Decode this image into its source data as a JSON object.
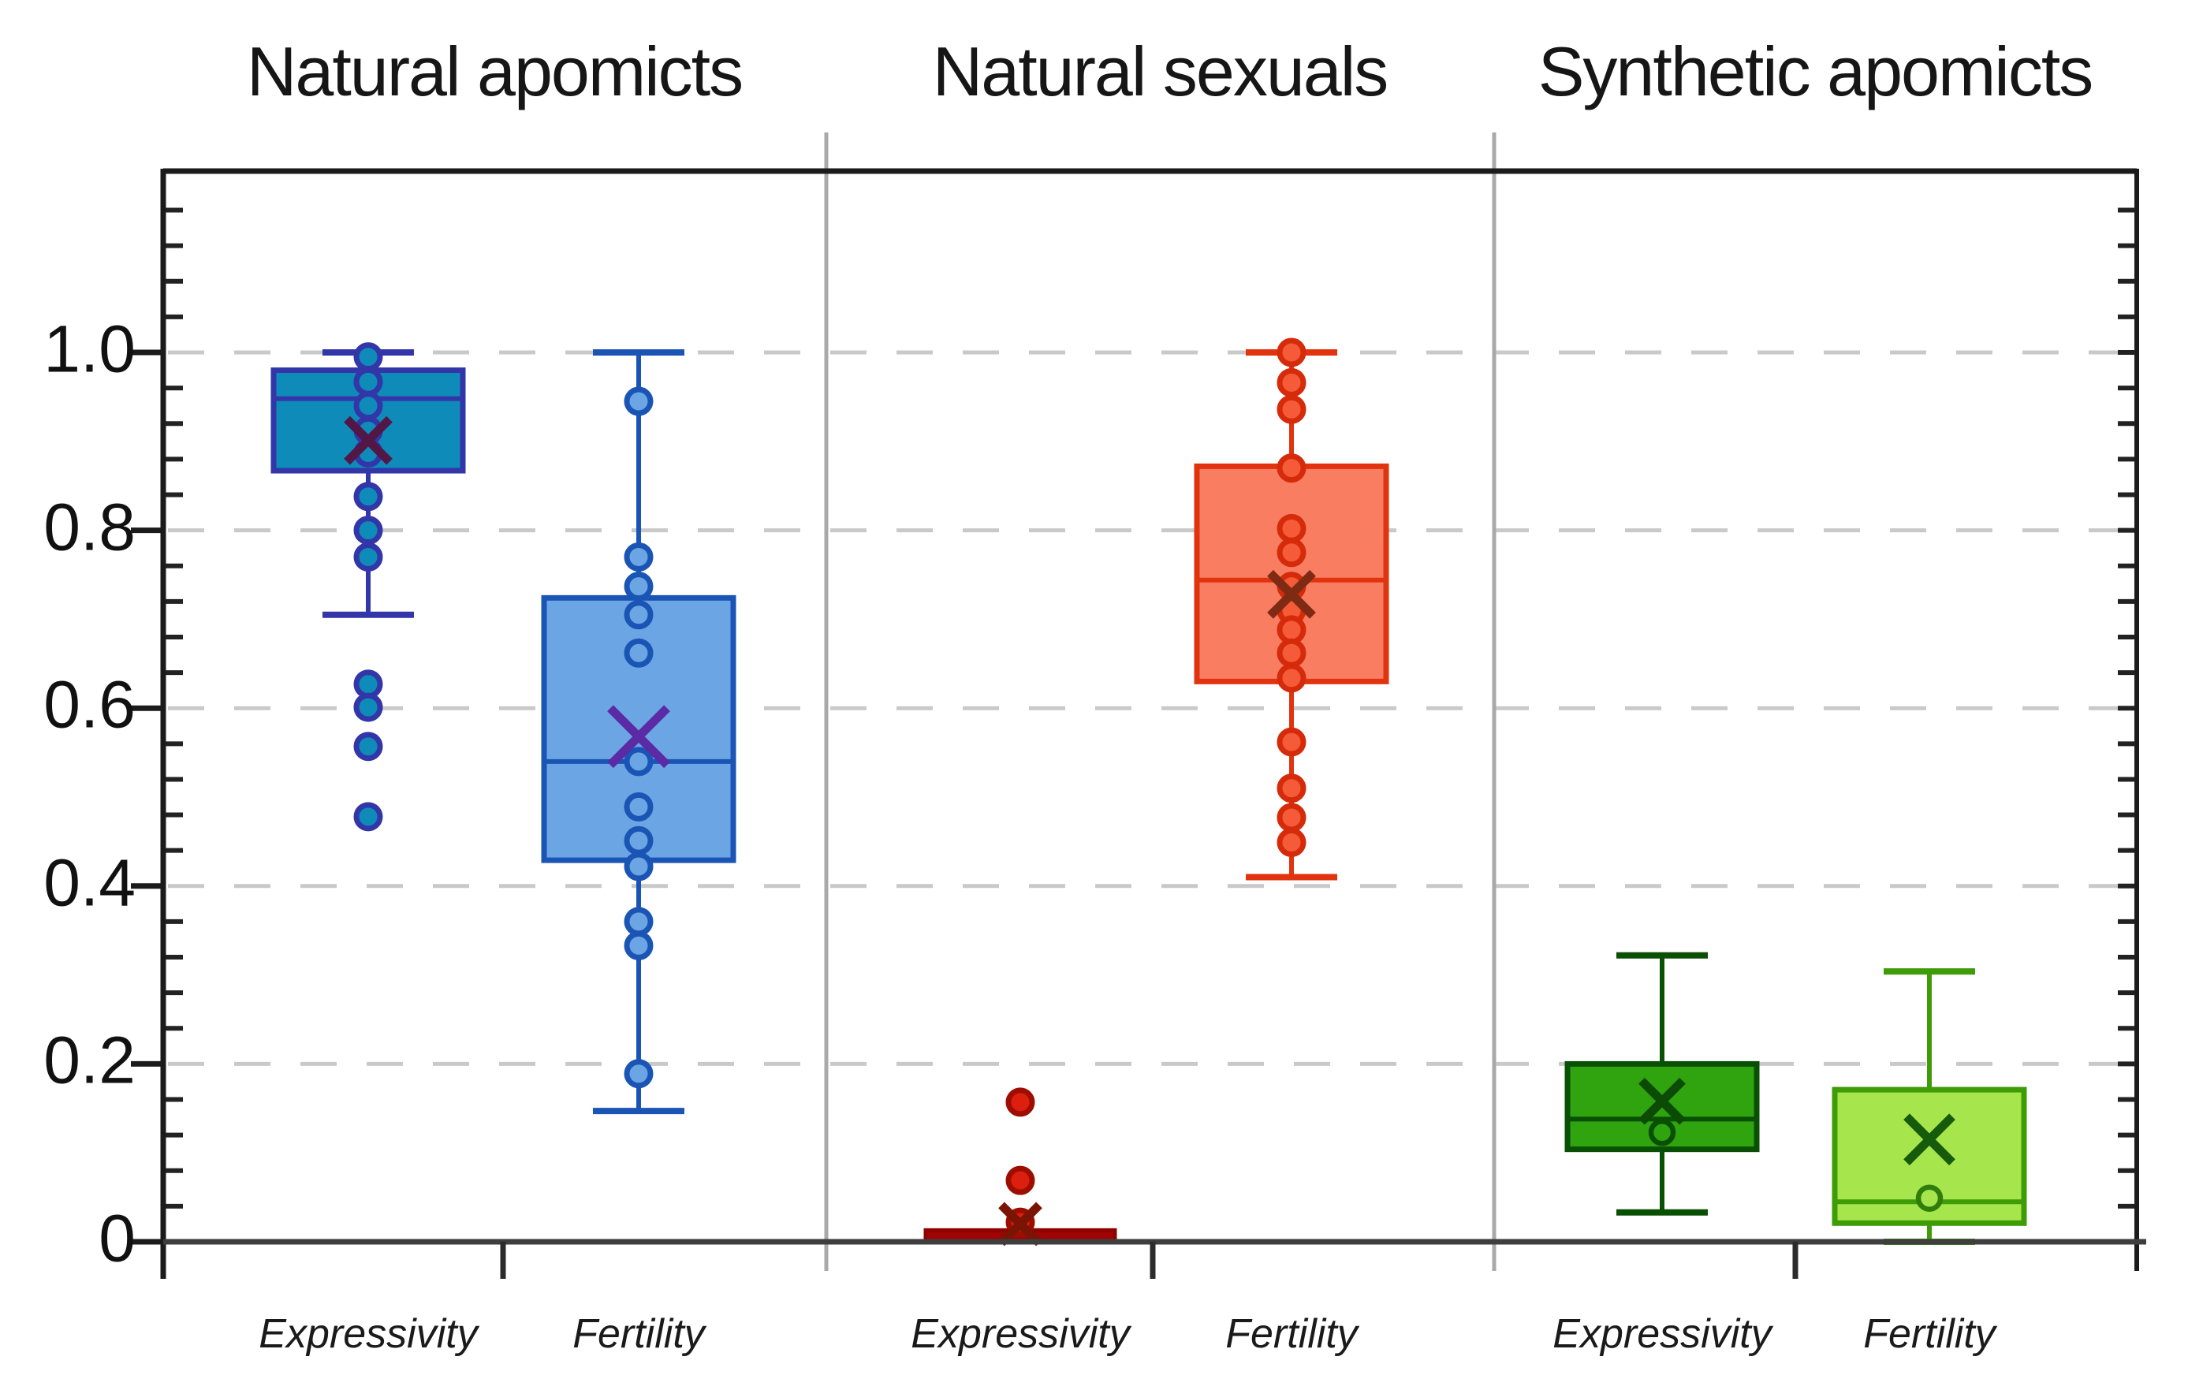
{
  "chart_data": {
    "type": "boxplot",
    "ylim": [
      0,
      1.2
    ],
    "grid_values": [
      0.2,
      0.4,
      0.6,
      0.8,
      1.0
    ],
    "grid_style": "dashed",
    "y_axis": {
      "minor_tick_step": 0.04,
      "ticks": [
        {
          "label": "1.0",
          "value": 1.0
        },
        {
          "label": "0.8",
          "value": 0.8
        },
        {
          "label": "0.6",
          "value": 0.6
        },
        {
          "label": "0.4",
          "value": 0.4
        },
        {
          "label": "0.2",
          "value": 0.2
        },
        {
          "label": "0",
          "value": 0.0
        }
      ]
    },
    "style": {
      "background": "#ffffff",
      "grid_color": "#c9c9c9",
      "separator_color": "#a9a9a9",
      "frame_color": "#1b1b1b",
      "axis_color": "#3e3e3e",
      "text_color": "#161616"
    },
    "groups": [
      {
        "title": "Natural apomicts",
        "boxes": [
          {
            "variable": "Expressivity",
            "fill": "#0E8BB9",
            "stroke": "#3236A8",
            "point_fill": "#0E8BB9",
            "point_stroke": "#3236A8",
            "mean_color": "#531747",
            "marker": "filled",
            "whisker_low": 0.705,
            "q1": 0.867,
            "median": 0.948,
            "q3": 0.98,
            "whisker_high": 1.0,
            "mean": 0.901,
            "points": [
              0.995,
              0.967,
              0.94,
              0.912,
              0.887,
              0.838,
              0.8,
              0.77
            ],
            "outliers": [
              0.627,
              0.601,
              0.557,
              0.478
            ]
          },
          {
            "variable": "Fertility",
            "fill": "#6BA5E3",
            "stroke": "#1A55B5",
            "point_fill": "#6BA5E3",
            "point_stroke": "#1A55B5",
            "mean_color": "#5B2AA5",
            "marker": "filled",
            "whisker_low": 0.147,
            "q1": 0.429,
            "median": 0.54,
            "q3": 0.724,
            "whisker_high": 1.0,
            "mean": 0.568,
            "points": [
              0.945,
              0.77,
              0.737,
              0.705,
              0.662,
              0.54,
              0.489,
              0.451,
              0.422,
              0.36,
              0.333,
              0.189
            ],
            "outliers": []
          }
        ]
      },
      {
        "title": "Natural sexuals",
        "boxes": [
          {
            "variable": "Expressivity",
            "fill": "#A00504",
            "stroke": "#8F0000",
            "point_fill": "#DC1F0E",
            "point_stroke": "#9E0E00",
            "mean_color": "#7A1505",
            "marker": "filled",
            "collapsed": true,
            "whisker_low": 0.0,
            "q1": 0.001,
            "median": 0.005,
            "q3": 0.013,
            "whisker_high": 0.013,
            "mean": 0.02,
            "points": [
              0.022
            ],
            "outliers": [
              0.157,
              0.069
            ]
          },
          {
            "variable": "Fertility",
            "fill": "#F97E61",
            "stroke": "#E2330F",
            "point_fill": "#F55B38",
            "point_stroke": "#D62B0B",
            "mean_color": "#7F2A12",
            "marker": "filled",
            "whisker_low": 0.41,
            "q1": 0.63,
            "median": 0.744,
            "q3": 0.872,
            "whisker_high": 1.0,
            "mean": 0.728,
            "points": [
              1.0,
              0.966,
              0.936,
              0.87,
              0.802,
              0.775,
              0.737,
              0.71,
              0.688,
              0.662,
              0.634,
              0.562,
              0.51,
              0.477,
              0.449
            ],
            "outliers": []
          }
        ]
      },
      {
        "title": "Synthetic apomicts",
        "boxes": [
          {
            "variable": "Expressivity",
            "fill": "#2FA40F",
            "stroke": "#0A5004",
            "point_fill": "#2FA40F",
            "point_stroke": "#0A5004",
            "mean_color": "#0C4B06",
            "marker": "open",
            "whisker_low": 0.033,
            "q1": 0.104,
            "median": 0.138,
            "q3": 0.2,
            "whisker_high": 0.322,
            "mean": 0.158,
            "points": [
              0.123
            ],
            "outliers": []
          },
          {
            "variable": "Fertility",
            "fill": "#A7E54D",
            "stroke": "#3E9D07",
            "point_fill": "#A7E54D",
            "point_stroke": "#2F7D0B",
            "mean_color": "#155B0B",
            "marker": "open",
            "whisker_low": 0.0,
            "q1": 0.021,
            "median": 0.045,
            "q3": 0.171,
            "whisker_high": 0.304,
            "mean": 0.115,
            "points": [
              0.049
            ],
            "outliers": []
          }
        ]
      }
    ]
  }
}
